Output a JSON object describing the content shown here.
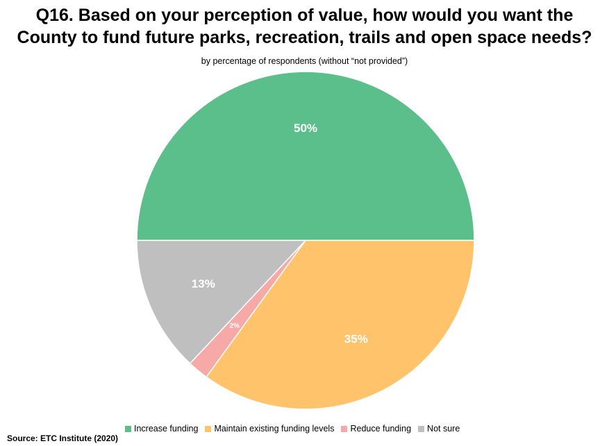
{
  "chart_data": {
    "type": "pie",
    "title": "Q16. Based on your perception of value, how would you want the County to fund future parks, recreation, trails and open space needs?",
    "title_line1": "Q16. Based on your perception of value, how would you want the",
    "title_line2": "County to fund future parks, recreation, trails and open space needs?",
    "subtitle": "by percentage of respondents (without “not provided”)",
    "legend_position": "bottom",
    "slices": [
      {
        "name": "Increase funding",
        "value": 50,
        "label": "50%",
        "color": "#5BBF8C"
      },
      {
        "name": "Maintain existing funding levels",
        "value": 35,
        "label": "35%",
        "color": "#FFC36B"
      },
      {
        "name": "Reduce funding",
        "value": 2,
        "label": "2%",
        "color": "#F7A9A8"
      },
      {
        "name": "Not sure",
        "value": 13,
        "label": "13%",
        "color": "#BFBFBF"
      }
    ]
  },
  "source": "Source:  ETC Institute (2020)"
}
